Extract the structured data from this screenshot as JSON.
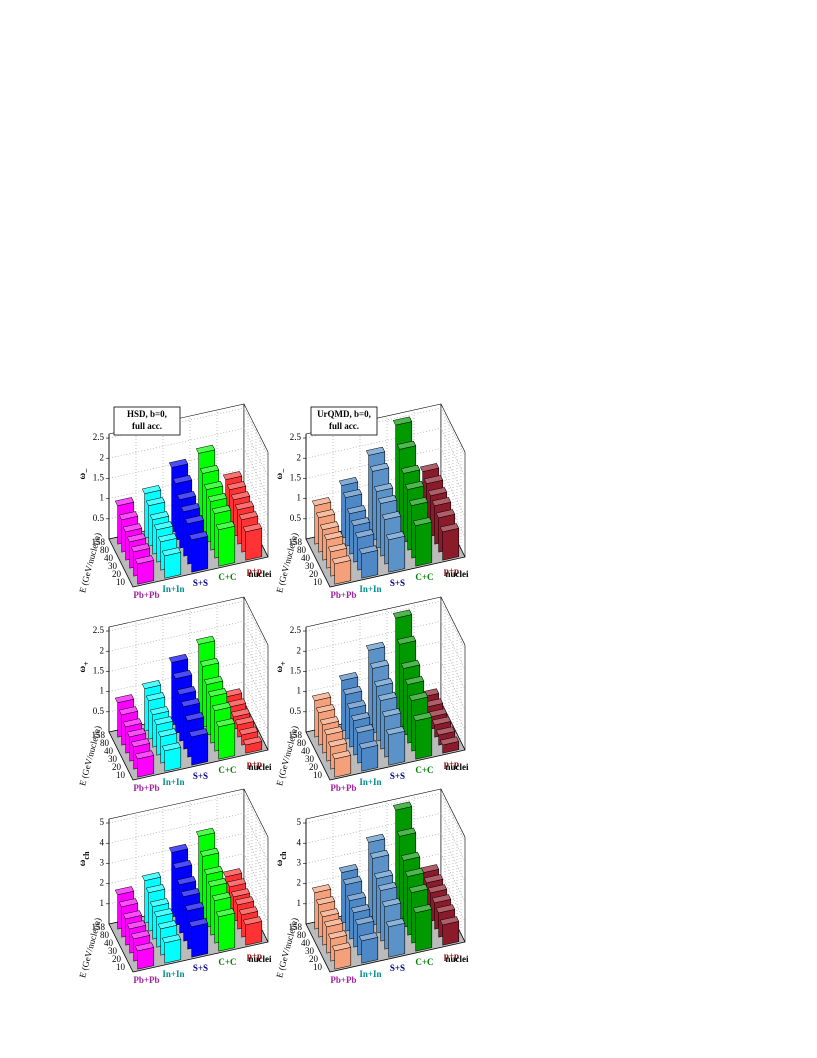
{
  "chart_data": [
    {
      "type": "bar3d",
      "title": [
        "HSD, b=0,",
        "full acc."
      ],
      "zlabel": "ω",
      "zlabel_sub": "−",
      "ylabel": "E (GeV/nucleon)",
      "xlabel": "nuclei",
      "energies": [
        10,
        20,
        30,
        40,
        80,
        158
      ],
      "zlim": [
        0,
        2.6
      ],
      "zticks": [
        0.5,
        1,
        1.5,
        2,
        2.5
      ],
      "series": [
        {
          "name": "Pb+Pb",
          "color": "#ff00ff",
          "label_color": "#a020a0",
          "values": [
            0.5,
            0.6,
            0.65,
            0.7,
            0.8,
            0.95
          ]
        },
        {
          "name": "In+In",
          "color": "#00ffff",
          "label_color": "#008b8b",
          "values": [
            0.55,
            0.7,
            0.8,
            0.85,
            1.0,
            1.1
          ]
        },
        {
          "name": "S+S",
          "color": "#0000ff",
          "label_color": "#00008b",
          "values": [
            0.8,
            1.0,
            1.1,
            1.2,
            1.4,
            1.6
          ]
        },
        {
          "name": "C+C",
          "color": "#00ff00",
          "label_color": "#008000",
          "values": [
            0.9,
            1.1,
            1.2,
            1.3,
            1.5,
            1.8
          ]
        },
        {
          "name": "p+p",
          "color": "#ff3333",
          "label_color": "#8b0000",
          "values": [
            0.7,
            0.8,
            0.85,
            0.9,
            0.95,
            1.0
          ]
        }
      ]
    },
    {
      "type": "bar3d",
      "title": [
        "UrQMD, b=0,",
        "full acc."
      ],
      "zlabel": "ω",
      "zlabel_sub": "−",
      "ylabel": "E (GeV/nucleon)",
      "xlabel": "nuclei",
      "energies": [
        10,
        20,
        30,
        40,
        80,
        158
      ],
      "zlim": [
        0,
        2.6
      ],
      "zticks": [
        0.5,
        1,
        1.5,
        2,
        2.5
      ],
      "series": [
        {
          "name": "Pb+Pb",
          "color": "#f4a07a",
          "label_color": "#a020a0",
          "values": [
            0.5,
            0.6,
            0.7,
            0.75,
            0.85,
            0.95
          ]
        },
        {
          "name": "In+In",
          "color": "#4f88c6",
          "label_color": "#008b8b",
          "values": [
            0.6,
            0.8,
            0.9,
            1.0,
            1.2,
            1.3
          ]
        },
        {
          "name": "S+S",
          "color": "#5b93c8",
          "label_color": "#00008b",
          "values": [
            0.8,
            1.1,
            1.3,
            1.4,
            1.7,
            1.9
          ]
        },
        {
          "name": "C+C",
          "color": "#009900",
          "label_color": "#008000",
          "values": [
            1.0,
            1.3,
            1.5,
            1.7,
            2.1,
            2.5
          ]
        },
        {
          "name": "p+p",
          "color": "#8b1a2a",
          "label_color": "#8b0000",
          "values": [
            0.7,
            0.85,
            0.95,
            1.0,
            1.1,
            1.2
          ]
        }
      ]
    },
    {
      "type": "bar3d",
      "zlabel": "ω",
      "zlabel_sub": "+",
      "ylabel": "E (GeV/nucleon)",
      "xlabel": "nuclei",
      "energies": [
        10,
        20,
        30,
        40,
        80,
        158
      ],
      "zlim": [
        0,
        2.6
      ],
      "zticks": [
        0.5,
        1,
        1.5,
        2,
        2.5
      ],
      "series": [
        {
          "name": "Pb+Pb",
          "color": "#ff00ff",
          "label_color": "#a020a0",
          "values": [
            0.45,
            0.55,
            0.6,
            0.65,
            0.75,
            0.85
          ]
        },
        {
          "name": "In+In",
          "color": "#00ffff",
          "label_color": "#008b8b",
          "values": [
            0.5,
            0.65,
            0.75,
            0.8,
            0.95,
            1.05
          ]
        },
        {
          "name": "S+S",
          "color": "#0000ff",
          "label_color": "#00008b",
          "values": [
            0.7,
            0.9,
            1.05,
            1.15,
            1.35,
            1.55
          ]
        },
        {
          "name": "C+C",
          "color": "#00ff00",
          "label_color": "#008000",
          "values": [
            0.8,
            1.0,
            1.15,
            1.25,
            1.5,
            1.85
          ]
        },
        {
          "name": "p+p",
          "color": "#ff3333",
          "label_color": "#8b0000",
          "values": [
            0.2,
            0.25,
            0.3,
            0.3,
            0.35,
            0.4
          ]
        }
      ]
    },
    {
      "type": "bar3d",
      "zlabel": "ω",
      "zlabel_sub": "+",
      "ylabel": "E (GeV/nucleon)",
      "xlabel": "nuclei",
      "energies": [
        10,
        20,
        30,
        40,
        80,
        158
      ],
      "zlim": [
        0,
        2.6
      ],
      "zticks": [
        0.5,
        1,
        1.5,
        2,
        2.5
      ],
      "series": [
        {
          "name": "Pb+Pb",
          "color": "#f4a07a",
          "label_color": "#a020a0",
          "values": [
            0.45,
            0.55,
            0.65,
            0.7,
            0.8,
            0.9
          ]
        },
        {
          "name": "In+In",
          "color": "#4f88c6",
          "label_color": "#008b8b",
          "values": [
            0.55,
            0.75,
            0.85,
            0.95,
            1.1,
            1.25
          ]
        },
        {
          "name": "S+S",
          "color": "#5b93c8",
          "label_color": "#00008b",
          "values": [
            0.75,
            1.0,
            1.2,
            1.35,
            1.6,
            1.85
          ]
        },
        {
          "name": "C+C",
          "color": "#009900",
          "label_color": "#008000",
          "values": [
            0.95,
            1.25,
            1.45,
            1.65,
            2.05,
            2.5
          ]
        },
        {
          "name": "p+p",
          "color": "#8b1a2a",
          "label_color": "#8b0000",
          "values": [
            0.2,
            0.25,
            0.3,
            0.3,
            0.35,
            0.4
          ]
        }
      ]
    },
    {
      "type": "bar3d",
      "zlabel": "ω",
      "zlabel_sub": "ch",
      "ylabel": "E (GeV/nucleon)",
      "xlabel": "nuclei",
      "energies": [
        10,
        20,
        30,
        40,
        80,
        158
      ],
      "zlim": [
        0,
        5.2
      ],
      "zticks": [
        1,
        2,
        3,
        4,
        5
      ],
      "series": [
        {
          "name": "Pb+Pb",
          "color": "#ff00ff",
          "label_color": "#a020a0",
          "values": [
            0.9,
            1.1,
            1.2,
            1.3,
            1.5,
            1.7
          ]
        },
        {
          "name": "In+In",
          "color": "#00ffff",
          "label_color": "#008b8b",
          "values": [
            1.0,
            1.3,
            1.5,
            1.6,
            1.9,
            2.1
          ]
        },
        {
          "name": "S+S",
          "color": "#0000ff",
          "label_color": "#00008b",
          "values": [
            1.5,
            1.9,
            2.2,
            2.4,
            2.8,
            3.2
          ]
        },
        {
          "name": "C+C",
          "color": "#00ff00",
          "label_color": "#008000",
          "values": [
            1.7,
            2.1,
            2.4,
            2.6,
            3.1,
            3.7
          ]
        },
        {
          "name": "p+p",
          "color": "#ff3333",
          "label_color": "#8b0000",
          "values": [
            1.0,
            1.1,
            1.2,
            1.2,
            1.3,
            1.4
          ]
        }
      ]
    },
    {
      "type": "bar3d",
      "zlabel": "ω",
      "zlabel_sub": "ch",
      "ylabel": "E (GeV/nucleon)",
      "xlabel": "nuclei",
      "energies": [
        10,
        20,
        30,
        40,
        80,
        158
      ],
      "zlim": [
        0,
        5.2
      ],
      "zticks": [
        1,
        2,
        3,
        4,
        5
      ],
      "series": [
        {
          "name": "Pb+Pb",
          "color": "#f4a07a",
          "label_color": "#a020a0",
          "values": [
            0.9,
            1.1,
            1.3,
            1.4,
            1.6,
            1.8
          ]
        },
        {
          "name": "In+In",
          "color": "#4f88c6",
          "label_color": "#008b8b",
          "values": [
            1.1,
            1.5,
            1.7,
            1.9,
            2.3,
            2.5
          ]
        },
        {
          "name": "S+S",
          "color": "#5b93c8",
          "label_color": "#00008b",
          "values": [
            1.5,
            2.1,
            2.5,
            2.7,
            3.3,
            3.7
          ]
        },
        {
          "name": "C+C",
          "color": "#009900",
          "label_color": "#008000",
          "values": [
            1.9,
            2.5,
            2.9,
            3.3,
            4.1,
            5.0
          ]
        },
        {
          "name": "p+p",
          "color": "#8b1a2a",
          "label_color": "#8b0000",
          "values": [
            1.0,
            1.2,
            1.3,
            1.4,
            1.5,
            1.6
          ]
        }
      ]
    }
  ]
}
